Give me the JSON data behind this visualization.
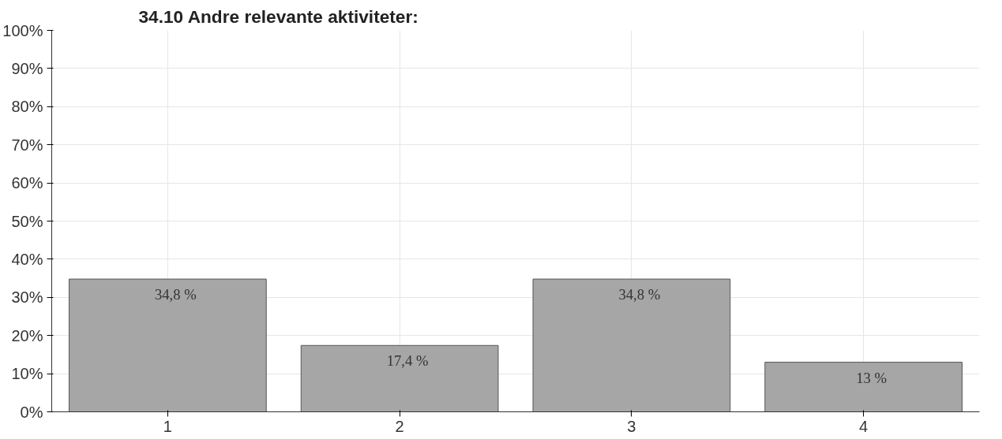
{
  "chart_data": {
    "type": "bar",
    "title": "34.10 Andre relevante aktiviteter:",
    "categories": [
      "1",
      "2",
      "3",
      "4"
    ],
    "values": [
      34.8,
      17.4,
      34.8,
      13
    ],
    "value_labels": [
      "34,8 %",
      "17,4 %",
      "34,8 %",
      "13 %"
    ],
    "color": "#a6a6a6",
    "ylim": [
      0,
      100
    ],
    "yticks": [
      {
        "value": 0,
        "label": "0%"
      },
      {
        "value": 10,
        "label": "10%"
      },
      {
        "value": 20,
        "label": "20%"
      },
      {
        "value": 30,
        "label": "30%"
      },
      {
        "value": 40,
        "label": "40%"
      },
      {
        "value": 50,
        "label": "50%"
      },
      {
        "value": 60,
        "label": "60%"
      },
      {
        "value": 70,
        "label": "70%"
      },
      {
        "value": 80,
        "label": "80%"
      },
      {
        "value": 90,
        "label": "90%"
      },
      {
        "value": 100,
        "label": "100%"
      }
    ],
    "grid": true
  }
}
